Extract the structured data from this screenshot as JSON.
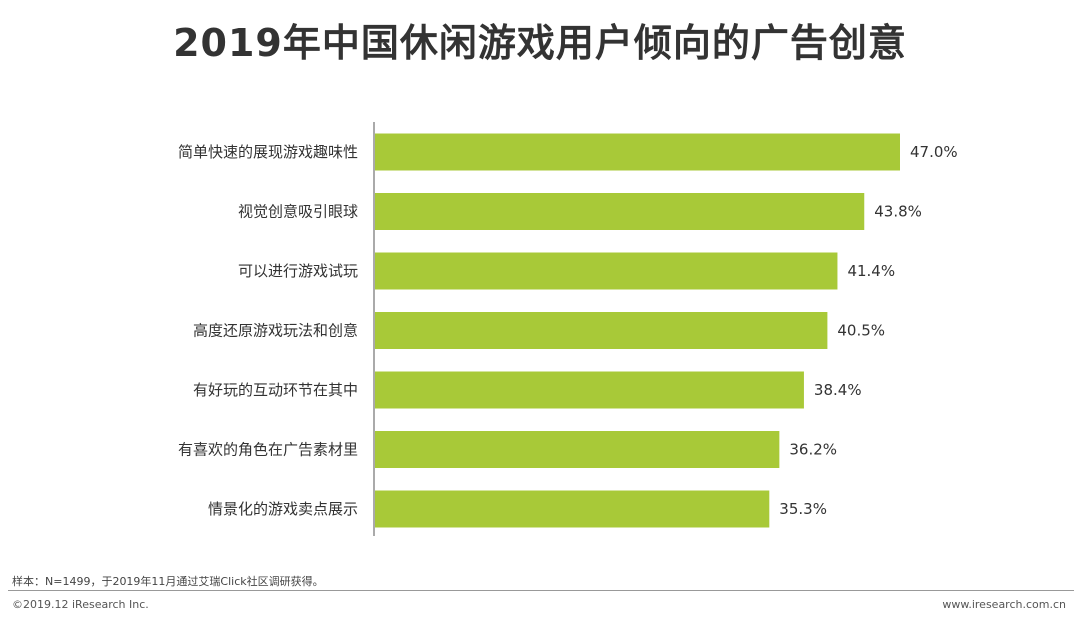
{
  "title": "2019年中国休闲游戏用户倾向的广告创意",
  "colors": {
    "bar": "#a8c938",
    "axis": "#555555",
    "text": "#333333"
  },
  "chart_data": {
    "type": "bar",
    "orientation": "horizontal",
    "title": "2019年中国休闲游戏用户倾向的广告创意",
    "categories": [
      "简单快速的展现游戏趣味性",
      "视觉创意吸引眼球",
      "可以进行游戏试玩",
      "高度还原游戏玩法和创意",
      "有好玩的互动环节在其中",
      "有喜欢的角色在广告素材里",
      "情景化的游戏卖点展示"
    ],
    "values": [
      47.0,
      43.8,
      41.4,
      40.5,
      38.4,
      36.2,
      35.3
    ],
    "value_labels": [
      "47.0%",
      "43.8%",
      "41.4%",
      "40.5%",
      "38.4%",
      "36.2%",
      "35.3%"
    ],
    "xlim": [
      0,
      47.0
    ],
    "grid": false,
    "legend": "none"
  },
  "footer": {
    "note": "样本：N=1499，于2019年11月通过艾瑞Click社区调研获得。",
    "copyright": "©2019.12 iResearch Inc.",
    "website": "www.iresearch.com.cn"
  }
}
